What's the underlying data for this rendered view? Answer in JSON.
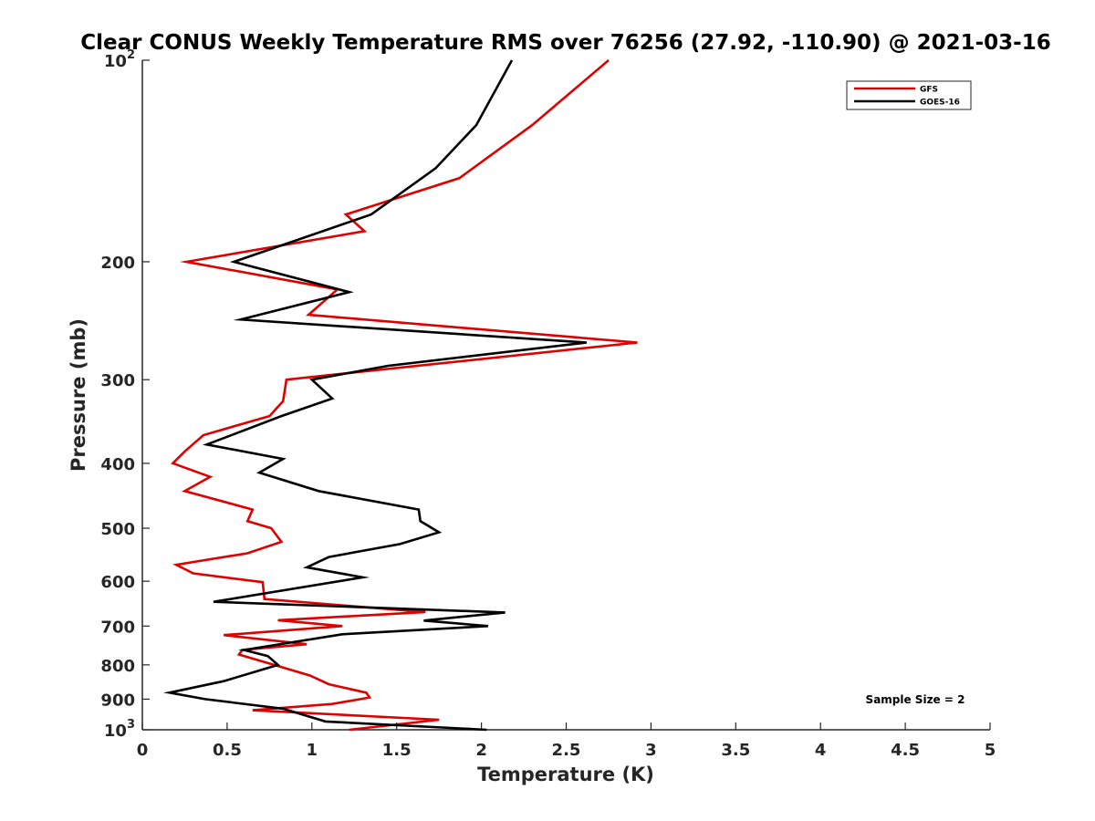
{
  "chart_data": {
    "type": "line",
    "title": "Clear CONUS Weekly Temperature RMS over 76256 (27.92, -110.90) @ 2021-03-16",
    "xlabel": "Temperature (K)",
    "ylabel": "Pressure (mb)",
    "xlim": [
      0,
      5
    ],
    "ylim": [
      100,
      1000
    ],
    "y_scale": "log",
    "y_reversed": true,
    "x_ticks": [
      "0",
      "0.5",
      "1",
      "1.5",
      "2",
      "2.5",
      "3",
      "3.5",
      "4",
      "4.5",
      "5"
    ],
    "y_ticks": [
      {
        "value": 100,
        "base": "10",
        "exp": "2"
      },
      {
        "value": 200,
        "label": "200"
      },
      {
        "value": 300,
        "label": "300"
      },
      {
        "value": 400,
        "label": "400"
      },
      {
        "value": 500,
        "label": "500"
      },
      {
        "value": 600,
        "label": "600"
      },
      {
        "value": 700,
        "label": "700"
      },
      {
        "value": 800,
        "label": "800"
      },
      {
        "value": 900,
        "label": "900"
      },
      {
        "value": 1000,
        "base": "10",
        "exp": "3"
      }
    ],
    "legend_position": "top-right",
    "annotation": "Sample Size = 2",
    "series": [
      {
        "name": "GFS",
        "color": "#e00000",
        "points": [
          [
            2.75,
            100
          ],
          [
            2.3,
            125
          ],
          [
            1.87,
            150
          ],
          [
            1.2,
            170
          ],
          [
            1.31,
            180
          ],
          [
            0.26,
            200
          ],
          [
            1.15,
            220
          ],
          [
            0.98,
            240
          ],
          [
            2.92,
            264
          ],
          [
            0.85,
            300
          ],
          [
            0.83,
            323
          ],
          [
            0.75,
            340
          ],
          [
            0.36,
            363
          ],
          [
            0.25,
            384
          ],
          [
            0.18,
            400
          ],
          [
            0.4,
            419
          ],
          [
            0.25,
            440
          ],
          [
            0.65,
            469
          ],
          [
            0.62,
            488
          ],
          [
            0.76,
            500
          ],
          [
            0.82,
            524
          ],
          [
            0.62,
            545
          ],
          [
            0.2,
            567
          ],
          [
            0.3,
            584
          ],
          [
            0.71,
            602
          ],
          [
            0.72,
            638
          ],
          [
            1.67,
            667
          ],
          [
            0.8,
            686
          ],
          [
            1.18,
            700
          ],
          [
            0.48,
            722
          ],
          [
            0.97,
            745
          ],
          [
            0.59,
            760
          ],
          [
            0.57,
            772
          ],
          [
            0.82,
            806
          ],
          [
            0.99,
            830
          ],
          [
            1.1,
            855
          ],
          [
            1.32,
            880
          ],
          [
            1.34,
            895
          ],
          [
            1.12,
            915
          ],
          [
            0.65,
            935
          ],
          [
            1.75,
            966
          ],
          [
            1.22,
            1000
          ]
        ]
      },
      {
        "name": "GOES-16",
        "color": "#000000",
        "points": [
          [
            2.18,
            100
          ],
          [
            1.97,
            125
          ],
          [
            1.73,
            145
          ],
          [
            1.35,
            170
          ],
          [
            0.54,
            200
          ],
          [
            1.22,
            222
          ],
          [
            0.58,
            244
          ],
          [
            2.62,
            264
          ],
          [
            1.45,
            286
          ],
          [
            1.0,
            300
          ],
          [
            1.12,
            320
          ],
          [
            0.82,
            340
          ],
          [
            0.38,
            375
          ],
          [
            0.83,
            394
          ],
          [
            0.69,
            413
          ],
          [
            1.04,
            440
          ],
          [
            1.63,
            469
          ],
          [
            1.64,
            488
          ],
          [
            1.75,
            507
          ],
          [
            1.52,
            528
          ],
          [
            1.1,
            552
          ],
          [
            0.97,
            572
          ],
          [
            1.3,
            592
          ],
          [
            0.42,
            644
          ],
          [
            2.14,
            668
          ],
          [
            1.66,
            687
          ],
          [
            2.04,
            700
          ],
          [
            1.18,
            720
          ],
          [
            0.6,
            760
          ],
          [
            0.74,
            776
          ],
          [
            0.8,
            800
          ],
          [
            0.48,
            846
          ],
          [
            0.16,
            880
          ],
          [
            0.37,
            900
          ],
          [
            0.83,
            930
          ],
          [
            1.08,
            972
          ],
          [
            2.03,
            1000
          ]
        ]
      }
    ]
  }
}
